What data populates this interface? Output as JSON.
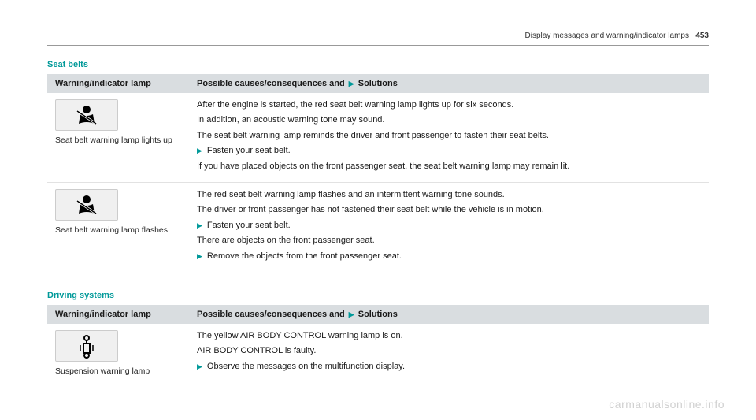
{
  "header": {
    "text": "Display messages and warning/indicator lamps",
    "page": "453"
  },
  "sections": [
    {
      "title": "Seat belts",
      "table": {
        "head_col1": "Warning/indicator lamp",
        "head_col2_a": "Possible causes/consequences and ",
        "head_col2_b": " Solutions",
        "rows": [
          {
            "icon": "seatbelt",
            "caption": "Seat belt warning lamp lights up",
            "lines": [
              {
                "type": "p",
                "text": "After the engine is started, the red seat belt warning lamp lights up for six seconds."
              },
              {
                "type": "p",
                "text": "In addition, an acoustic warning tone may sound."
              },
              {
                "type": "p",
                "text": "The seat belt warning lamp reminds the driver and front passenger to fasten their seat belts."
              },
              {
                "type": "b",
                "text": "Fasten your seat belt."
              },
              {
                "type": "p",
                "text": "If you have placed objects on the front passenger seat, the seat belt warning lamp may remain lit."
              }
            ]
          },
          {
            "icon": "seatbelt",
            "caption": "Seat belt warning lamp flashes",
            "lines": [
              {
                "type": "p",
                "text": "The red seat belt warning lamp flashes and an intermittent warning tone sounds."
              },
              {
                "type": "p",
                "text": "The driver or front passenger has not fastened their seat belt while the vehicle is in motion."
              },
              {
                "type": "b",
                "text": "Fasten your seat belt."
              },
              {
                "type": "p",
                "text": "There are objects on the front passenger seat."
              },
              {
                "type": "b",
                "text": "Remove the objects from the front passenger seat."
              }
            ]
          }
        ]
      }
    },
    {
      "title": "Driving systems",
      "table": {
        "head_col1": "Warning/indicator lamp",
        "head_col2_a": "Possible causes/consequences and ",
        "head_col2_b": " Solutions",
        "rows": [
          {
            "icon": "suspension",
            "caption": "Suspension warning lamp",
            "lines": [
              {
                "type": "p",
                "text": "The yellow AIR BODY CONTROL warning lamp is on."
              },
              {
                "type": "p",
                "text": "AIR BODY CONTROL is faulty."
              },
              {
                "type": "b",
                "text": "Observe the messages on the multifunction display."
              }
            ]
          }
        ]
      }
    }
  ],
  "watermark": "carmanualsonline.info",
  "colors": {
    "accent": "#009999",
    "header_bg": "#d9dde0"
  }
}
